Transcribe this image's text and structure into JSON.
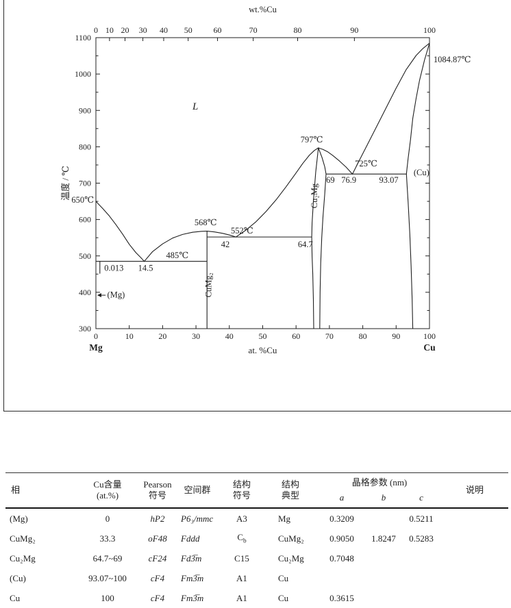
{
  "page": {
    "background": "#ffffff",
    "ink": "#1f1f1f"
  },
  "chart_data": {
    "type": "line",
    "xlabel": "at. %Cu",
    "top_xlabel": "wt.%Cu",
    "ylabel": "温度 / ℃",
    "xlim": [
      0,
      100
    ],
    "ylim": [
      300,
      1100
    ],
    "grid": false,
    "x_ticks": [
      0,
      10,
      20,
      30,
      40,
      50,
      60,
      70,
      80,
      90,
      100
    ],
    "y_ticks": [
      300,
      400,
      500,
      600,
      700,
      800,
      900,
      1000,
      1100
    ],
    "top_ticks": [
      {
        "label": "0",
        "at": 0
      },
      {
        "label": "10",
        "at": 4.08
      },
      {
        "label": "20",
        "at": 8.73
      },
      {
        "label": "30",
        "at": 14.08
      },
      {
        "label": "40",
        "at": 20.32
      },
      {
        "label": "50",
        "at": 27.66
      },
      {
        "label": "60",
        "at": 36.46
      },
      {
        "label": "70",
        "at": 47.16
      },
      {
        "label": "80",
        "at": 60.47
      },
      {
        "label": "90",
        "at": 77.49
      },
      {
        "label": "100",
        "at": 100
      }
    ],
    "corner_left": "Mg",
    "corner_right": "Cu",
    "series": [
      {
        "name": "liquidus-mg",
        "points": [
          [
            0,
            650
          ],
          [
            2,
            631
          ],
          [
            4,
            610
          ],
          [
            6,
            586
          ],
          [
            8,
            560
          ],
          [
            10,
            532
          ],
          [
            12,
            509
          ],
          [
            13.5,
            495
          ],
          [
            14.5,
            485
          ]
        ]
      },
      {
        "name": "liquidus-cumg2-left",
        "points": [
          [
            14.5,
            485
          ],
          [
            17,
            512
          ],
          [
            20,
            533
          ],
          [
            23,
            549
          ],
          [
            26,
            559
          ],
          [
            29,
            565
          ],
          [
            31.5,
            567.5
          ],
          [
            33.3,
            568
          ]
        ]
      },
      {
        "name": "liquidus-cumg2-right",
        "points": [
          [
            33.3,
            568
          ],
          [
            35.5,
            566
          ],
          [
            38,
            562
          ],
          [
            40,
            557.5
          ],
          [
            42,
            552
          ]
        ]
      },
      {
        "name": "liquidus-cu2mg-left",
        "points": [
          [
            42,
            552
          ],
          [
            45,
            571
          ],
          [
            48,
            594
          ],
          [
            51,
            622
          ],
          [
            54,
            654
          ],
          [
            57,
            690
          ],
          [
            60,
            728
          ],
          [
            62,
            754
          ],
          [
            64,
            777
          ],
          [
            65.5,
            790
          ],
          [
            66.7,
            797
          ]
        ]
      },
      {
        "name": "liquidus-cu2mg-right",
        "points": [
          [
            66.7,
            797
          ],
          [
            68,
            793
          ],
          [
            69.5,
            786
          ],
          [
            71,
            776
          ],
          [
            73,
            761
          ],
          [
            75,
            744
          ],
          [
            76.9,
            725
          ]
        ]
      },
      {
        "name": "liquidus-cu",
        "points": [
          [
            76.9,
            725
          ],
          [
            79,
            763
          ],
          [
            81,
            799
          ],
          [
            84,
            853
          ],
          [
            87,
            907
          ],
          [
            90,
            961
          ],
          [
            93,
            1012
          ],
          [
            96,
            1051
          ],
          [
            98,
            1070
          ],
          [
            100,
            1084.87
          ]
        ]
      },
      {
        "name": "solidus-cu",
        "points": [
          [
            100,
            1084.87
          ],
          [
            98.5,
            1038
          ],
          [
            97,
            982
          ],
          [
            96,
            933
          ],
          [
            95,
            878
          ],
          [
            94.3,
            818
          ],
          [
            93.6,
            768
          ],
          [
            93.07,
            725
          ]
        ]
      },
      {
        "name": "solvus-cu",
        "points": [
          [
            93.07,
            725
          ],
          [
            93.6,
            648
          ],
          [
            94.1,
            560
          ],
          [
            94.5,
            470
          ],
          [
            94.8,
            380
          ],
          [
            95,
            300
          ]
        ]
      },
      {
        "name": "cu2mg-left-boundary",
        "points": [
          [
            66.7,
            797
          ],
          [
            65.9,
            730
          ],
          [
            65.2,
            650
          ],
          [
            64.8,
            590
          ],
          [
            64.7,
            552
          ],
          [
            64.8,
            500
          ],
          [
            65,
            450
          ],
          [
            65.2,
            380
          ],
          [
            65.3,
            300
          ]
        ]
      },
      {
        "name": "cu2mg-right-boundary",
        "points": [
          [
            66.7,
            797
          ],
          [
            67.8,
            770
          ],
          [
            68.6,
            745
          ],
          [
            69,
            725
          ],
          [
            68.6,
            670
          ],
          [
            68.1,
            610
          ],
          [
            67.7,
            550
          ],
          [
            67.4,
            480
          ],
          [
            67.2,
            400
          ],
          [
            67.1,
            300
          ]
        ]
      },
      {
        "name": "cumg2-line",
        "points": [
          [
            33.3,
            568
          ],
          [
            33.3,
            300
          ]
        ]
      },
      {
        "name": "solvus-mg-stub",
        "points": [
          [
            1.2,
            485
          ],
          [
            1.2,
            452
          ]
        ]
      }
    ],
    "isotherms": [
      {
        "temp": 485,
        "x1": 0.013,
        "x2": 33.3
      },
      {
        "temp": 552,
        "x1": 33.3,
        "x2": 64.7
      },
      {
        "temp": 725,
        "x1": 69,
        "x2": 93.07
      }
    ],
    "annotations": [
      {
        "text": "L",
        "at": 29.8,
        "T": 902,
        "italic": true,
        "size": 15
      },
      {
        "text": "1084.87℃",
        "at": 101.2,
        "T": 1032,
        "anchor": "start"
      },
      {
        "text": "797℃",
        "at": 64.7,
        "T": 812
      },
      {
        "text": "725℃",
        "at": 81,
        "T": 746
      },
      {
        "text": "(Cu)",
        "at": 97.6,
        "T": 722
      },
      {
        "text": "69",
        "at": 70.3,
        "T": 701
      },
      {
        "text": "76.9",
        "at": 75.8,
        "T": 701
      },
      {
        "text": "93.07",
        "at": 87.8,
        "T": 701
      },
      {
        "text": "568℃",
        "at": 32.9,
        "T": 584
      },
      {
        "text": "552℃",
        "at": 43.8,
        "T": 562
      },
      {
        "text": "42",
        "at": 38.8,
        "T": 524
      },
      {
        "text": "64.7",
        "at": 62.8,
        "T": 524
      },
      {
        "text": "485℃",
        "at": 24.4,
        "T": 494
      },
      {
        "text": "0.013",
        "at": 5.4,
        "T": 459
      },
      {
        "text": "14.5",
        "at": 14.9,
        "T": 459
      },
      {
        "text": "650℃",
        "at": -0.6,
        "T": 646,
        "anchor": "end"
      },
      {
        "text": "(Mg)",
        "at": 3.4,
        "T": 386,
        "anchor": "start"
      },
      {
        "text": "CuMg₂",
        "at": 34.6,
        "T": 420,
        "rotate": true
      },
      {
        "text": "Cu₂Mg",
        "at": 66.3,
        "T": 665,
        "rotate": true
      }
    ],
    "mg_arrow": {
      "T": 392,
      "from_at": 2.9,
      "to_at": 0.4
    }
  },
  "table": {
    "headers": {
      "phase": "相",
      "cu1": "Cu含量",
      "cu2": "(at.%)",
      "pearson1": "Pearson",
      "pearson2": "符号",
      "space_group": "空间群",
      "ss1": "结构",
      "ss2": "符号",
      "st1": "结构",
      "st2": "典型",
      "lattice": "晶格参数 (nm)",
      "a": "a",
      "b": "b",
      "c": "c",
      "notes": "说明"
    },
    "rows": [
      [
        "(Mg)",
        "0",
        "hP2",
        "P6₃/mmc",
        "A3",
        "Mg",
        "0.3209",
        "",
        "0.5211",
        ""
      ],
      [
        "CuMg₂",
        "33.3",
        "oF48",
        "Fddd",
        "C_b",
        "CuMg₂",
        "0.9050",
        "1.8247",
        "0.5283",
        ""
      ],
      [
        "Cu₂Mg",
        "64.7~69",
        "cF24",
        "Fd3̅m",
        "C15",
        "Cu₂Mg",
        "0.7048",
        "",
        "",
        ""
      ],
      [
        "(Cu)",
        "93.07~100",
        "cF4",
        "Fm3̅m",
        "A1",
        "Cu",
        "",
        "",
        "",
        ""
      ],
      [
        "Cu",
        "100",
        "cF4",
        "Fm3̅m",
        "A1",
        "Cu",
        "0.3615",
        "",
        "",
        ""
      ]
    ]
  }
}
